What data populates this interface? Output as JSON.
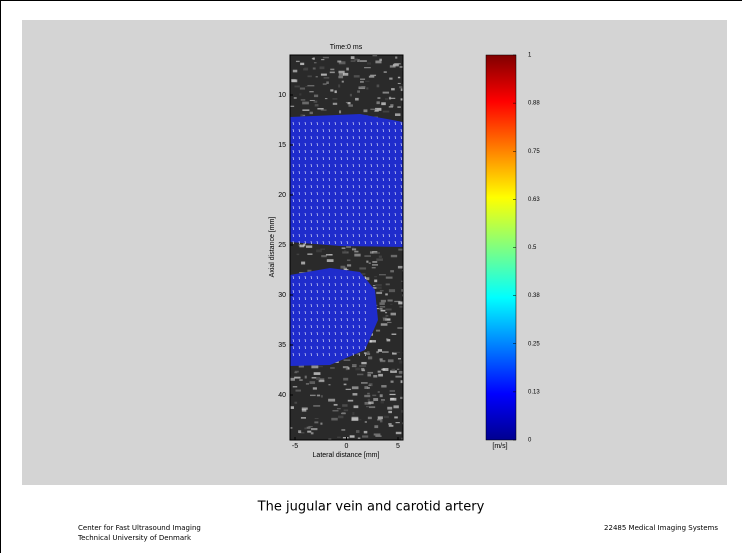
{
  "figure": {
    "title": "Time:0 ms",
    "xlabel": "Lateral distance [mm]",
    "ylabel": "Axial distance [mm]",
    "xticks": [
      -5,
      0,
      5
    ],
    "yticks": [
      10,
      15,
      20,
      25,
      30,
      35,
      40
    ],
    "colorbar_ticks": [
      1,
      0.88,
      0.75,
      0.63,
      0.5,
      0.38,
      0.25,
      0.13,
      0
    ],
    "colorbar_unit": "[m/s]"
  },
  "caption": "The jugular vein and carotid artery",
  "footer": {
    "left": [
      "Center for Fast Ultrasound Imaging",
      "Technical University of Denmark"
    ],
    "right": "22485 Medical Imaging Systems"
  }
}
